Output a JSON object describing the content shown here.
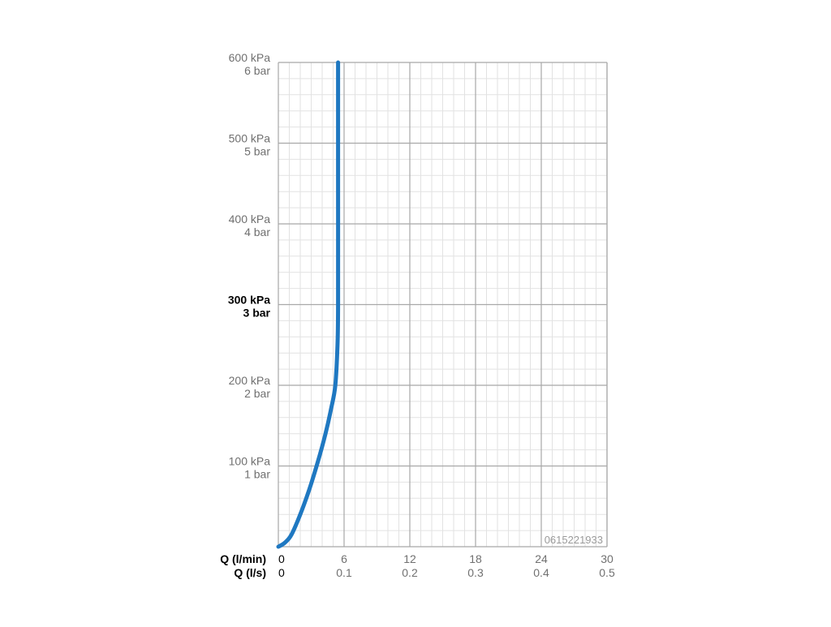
{
  "chart_data": {
    "type": "line",
    "y_ticks": [
      {
        "value": 600,
        "kpa": "600 kPa",
        "bar": "6 bar",
        "bold": false
      },
      {
        "value": 500,
        "kpa": "500 kPa",
        "bar": "5 bar",
        "bold": false
      },
      {
        "value": 400,
        "kpa": "400 kPa",
        "bar": "4 bar",
        "bold": false
      },
      {
        "value": 300,
        "kpa": "300 kPa",
        "bar": "3 bar",
        "bold": true
      },
      {
        "value": 200,
        "kpa": "200 kPa",
        "bar": "2 bar",
        "bold": false
      },
      {
        "value": 100,
        "kpa": "100 kPa",
        "bar": "1 bar",
        "bold": false
      }
    ],
    "x_ticks": [
      {
        "value": 0,
        "lmin": "0",
        "ls": "0"
      },
      {
        "value": 6,
        "lmin": "6",
        "ls": "0.1"
      },
      {
        "value": 12,
        "lmin": "12",
        "ls": "0.2"
      },
      {
        "value": 18,
        "lmin": "18",
        "ls": "0.3"
      },
      {
        "value": 24,
        "lmin": "24",
        "ls": "0.4"
      },
      {
        "value": 30,
        "lmin": "30",
        "ls": "0.5"
      }
    ],
    "x_axis_label_1": "Q (l/min)",
    "x_axis_label_2": "Q (l/s)",
    "xlim": [
      0,
      30
    ],
    "ylim": [
      0,
      600
    ],
    "grid": true,
    "series": [
      {
        "color": "#1f78c1",
        "x": [
          0,
          0.6,
          1.2,
          2.0,
          2.8,
          3.6,
          4.3,
          4.8,
          5.2,
          5.4,
          5.45,
          5.45,
          5.45
        ],
        "y": [
          0,
          5,
          15,
          40,
          70,
          105,
          140,
          170,
          200,
          250,
          300,
          450,
          600
        ]
      }
    ],
    "watermark": "0615221933"
  }
}
